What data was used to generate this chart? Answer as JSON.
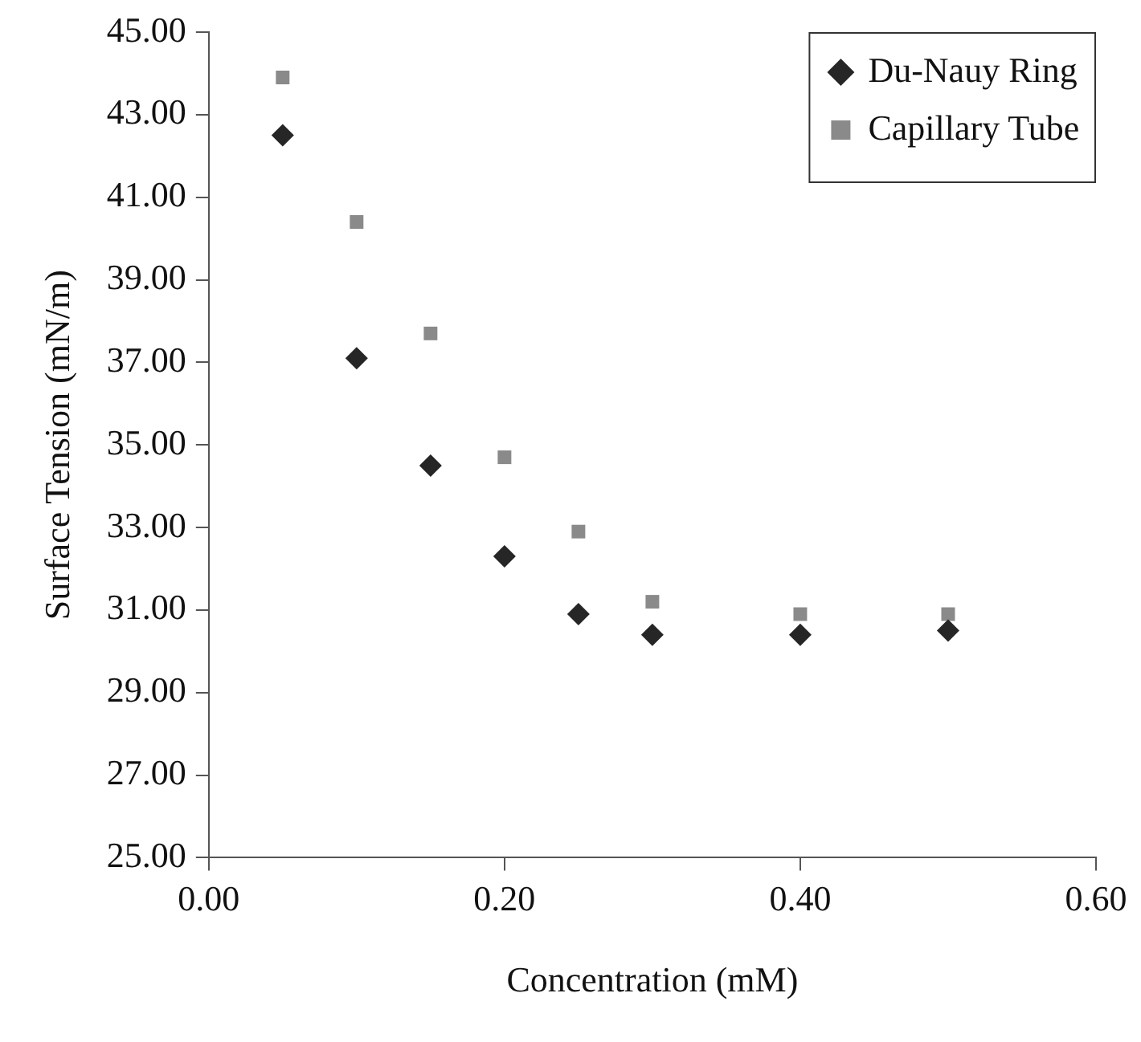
{
  "chart_data": {
    "type": "scatter",
    "xlabel": "Concentration (mM)",
    "ylabel": "Surface Tension (mN/m)",
    "x": [
      0.05,
      0.1,
      0.15,
      0.2,
      0.25,
      0.3,
      0.4,
      0.5
    ],
    "series": [
      {
        "name": "Du-Nauy Ring",
        "color": "#262626",
        "marker": "diamond",
        "values": [
          42.5,
          37.1,
          34.5,
          32.3,
          30.9,
          30.4,
          30.4,
          30.5
        ]
      },
      {
        "name": "Capillary Tube",
        "color": "#8a8a8a",
        "marker": "square",
        "values": [
          43.9,
          40.4,
          37.7,
          34.7,
          32.9,
          31.2,
          30.9,
          30.9
        ]
      }
    ],
    "xlim": [
      0,
      0.6
    ],
    "xticks": [
      {
        "value": 0,
        "label": "0.00"
      },
      {
        "value": 0.2,
        "label": "0.20"
      },
      {
        "value": 0.4,
        "label": "0.40"
      },
      {
        "value": 0.6,
        "label": "0.60"
      }
    ],
    "ylim": [
      25,
      45
    ],
    "yticks": [
      {
        "value": 25,
        "label": "25.00"
      },
      {
        "value": 27,
        "label": "27.00"
      },
      {
        "value": 29,
        "label": "29.00"
      },
      {
        "value": 31,
        "label": "31.00"
      },
      {
        "value": 33,
        "label": "33.00"
      },
      {
        "value": 35,
        "label": "35.00"
      },
      {
        "value": 37,
        "label": "37.00"
      },
      {
        "value": 39,
        "label": "39.00"
      },
      {
        "value": 41,
        "label": "41.00"
      },
      {
        "value": 43,
        "label": "43.00"
      },
      {
        "value": 45,
        "label": "45.00"
      }
    ],
    "grid": false,
    "legend": "top right"
  }
}
